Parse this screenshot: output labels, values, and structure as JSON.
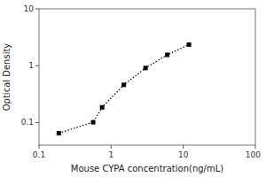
{
  "chart_data": {
    "type": "line",
    "x": [
      0.188,
      0.563,
      0.75,
      1.5,
      3.0,
      6.0,
      12.0
    ],
    "values": [
      0.065,
      0.101,
      0.185,
      0.46,
      0.91,
      1.55,
      2.35
    ],
    "xlabel": "Mouse CYPA concentration(ng/mL)",
    "ylabel": "Optical Density",
    "log": true,
    "xlim": [
      0.1,
      100
    ],
    "ylim": [
      0.04,
      10
    ],
    "xticks": [
      0.1,
      1,
      10,
      100
    ],
    "yticks": [
      0.1,
      1,
      10
    ],
    "marker": "square",
    "line_style": "dotted",
    "color": "black",
    "grid": false
  }
}
